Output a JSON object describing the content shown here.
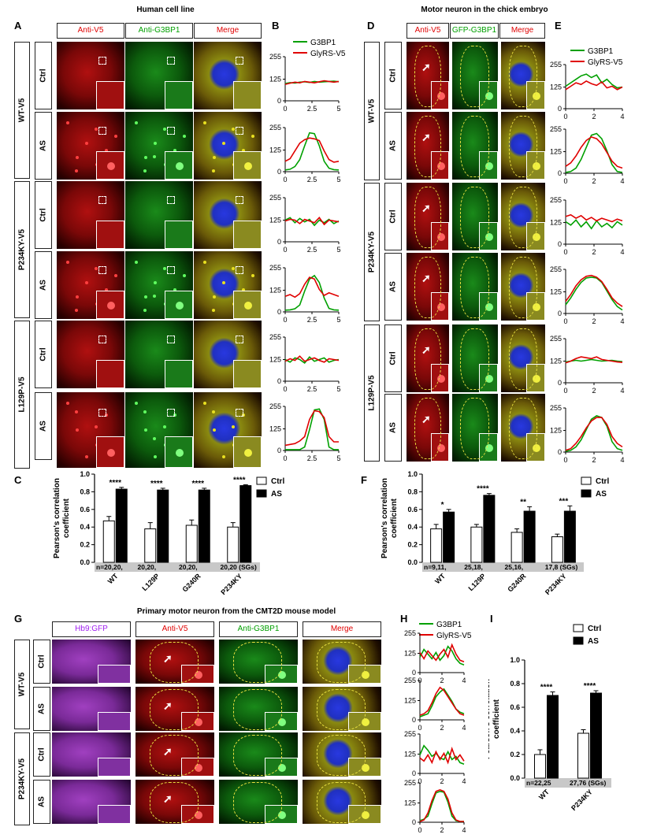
{
  "panels": {
    "A": "A",
    "B": "B",
    "C": "C",
    "D": "D",
    "E": "E",
    "F": "F",
    "G": "G",
    "H": "H",
    "I": "I"
  },
  "titles": {
    "human": "Human cell line",
    "chick": "Motor neuron in the chick embryo",
    "mouse": "Primary motor neuron from the CMT2D mouse model"
  },
  "headers_A": [
    "Anti-V5",
    "Anti-G3BP1",
    "Merge"
  ],
  "headers_D": [
    "Anti-V5",
    "GFP-G3BP1",
    "Merge"
  ],
  "headers_G": [
    "Hb9:GFP",
    "Anti-V5",
    "Anti-G3BP1",
    "Merge"
  ],
  "groups_A": [
    "WT-V5",
    "P234KY-V5",
    "L129P-V5"
  ],
  "groups_G": [
    "WT-V5",
    "P234KY-V5"
  ],
  "conds": [
    "Ctrl",
    "AS"
  ],
  "legend_lines": {
    "g3bp1": "G3BP1",
    "glyrs": "GlyRS-V5"
  },
  "colors": {
    "red": "#e00000",
    "green": "#00a000",
    "purple": "#a020f0",
    "nucleus": "#2030ff"
  },
  "bar_legend": {
    "ctrl": "Ctrl",
    "as": "AS"
  },
  "bar_ylabel": [
    "Pearson's correlation",
    "coefficient"
  ],
  "chart_data": [
    {
      "id": "C",
      "type": "bar",
      "categories": [
        "WT",
        "L129P",
        "G240R",
        "P234KY"
      ],
      "series": [
        {
          "name": "Ctrl",
          "values": [
            0.47,
            0.38,
            0.42,
            0.4
          ],
          "errors": [
            0.05,
            0.07,
            0.06,
            0.05
          ]
        },
        {
          "name": "AS",
          "values": [
            0.83,
            0.82,
            0.82,
            0.87
          ],
          "errors": [
            0.02,
            0.02,
            0.02,
            0.01
          ]
        }
      ],
      "significance": [
        "****",
        "****",
        "****",
        "****"
      ],
      "n_labels": [
        "n=20,20,",
        "20,20,",
        "20,20,",
        "20,20 (SGs)"
      ],
      "ylabel": "Pearson's correlation coefficient",
      "ylim": [
        0,
        1.0
      ],
      "yticks": [
        "0.0",
        "0.2",
        "0.4",
        "0.6",
        "0.8",
        "1.0"
      ]
    },
    {
      "id": "F",
      "type": "bar",
      "categories": [
        "WT",
        "L129P",
        "G240R",
        "P234KY"
      ],
      "series": [
        {
          "name": "Ctrl",
          "values": [
            0.38,
            0.4,
            0.34,
            0.29
          ],
          "errors": [
            0.05,
            0.03,
            0.04,
            0.03
          ]
        },
        {
          "name": "AS",
          "values": [
            0.57,
            0.76,
            0.58,
            0.58
          ],
          "errors": [
            0.03,
            0.02,
            0.05,
            0.06
          ]
        }
      ],
      "significance": [
        "*",
        "****",
        "**",
        "***"
      ],
      "n_labels": [
        "n=9,11,",
        "25,18,",
        "25,16,",
        "17,8 (SGs)"
      ],
      "ylabel": "Pearson's correlation coefficient",
      "ylim": [
        0,
        1.0
      ],
      "yticks": [
        "0.0",
        "0.2",
        "0.4",
        "0.6",
        "0.8",
        "1.0"
      ]
    },
    {
      "id": "I",
      "type": "bar",
      "categories": [
        "WT",
        "P234KY"
      ],
      "series": [
        {
          "name": "Ctrl",
          "values": [
            0.2,
            0.38
          ],
          "errors": [
            0.04,
            0.03
          ]
        },
        {
          "name": "AS",
          "values": [
            0.7,
            0.72
          ],
          "errors": [
            0.03,
            0.02
          ]
        }
      ],
      "significance": [
        "****",
        "****"
      ],
      "n_labels": [
        "n=22,25",
        "27,76 (SGs)"
      ],
      "ylabel": "Pearson's correlation coefficient",
      "ylim": [
        0,
        1.0
      ],
      "yticks": [
        "0.0",
        "0.2",
        "0.4",
        "0.6",
        "0.8",
        "1.0"
      ]
    },
    {
      "id": "B",
      "type": "line",
      "yticks": [
        "0",
        "125",
        "255"
      ],
      "xticks_5": [
        "0",
        "2.5",
        "5"
      ],
      "plots": [
        {
          "green": [
            100,
            105,
            103,
            108,
            110,
            106,
            112,
            108,
            110,
            112,
            114,
            110
          ],
          "red": [
            95,
            102,
            108,
            104,
            112,
            108,
            104,
            110,
            116,
            112,
            108,
            112
          ]
        },
        {
          "green": [
            10,
            14,
            30,
            70,
            150,
            225,
            220,
            150,
            60,
            20,
            12,
            10
          ],
          "red": [
            60,
            75,
            120,
            165,
            185,
            195,
            190,
            180,
            120,
            70,
            55,
            60
          ]
        },
        {
          "green": [
            125,
            140,
            110,
            135,
            115,
            130,
            95,
            125,
            110,
            130,
            105,
            120
          ],
          "red": [
            120,
            130,
            125,
            105,
            130,
            120,
            110,
            140,
            100,
            125,
            120,
            115
          ]
        },
        {
          "green": [
            10,
            12,
            18,
            40,
            120,
            190,
            210,
            170,
            80,
            20,
            12,
            10
          ],
          "red": [
            90,
            100,
            85,
            105,
            160,
            200,
            190,
            130,
            95,
            110,
            100,
            90
          ]
        },
        {
          "green": [
            125,
            110,
            135,
            125,
            105,
            140,
            115,
            125,
            135,
            110,
            120,
            125
          ],
          "red": [
            115,
            130,
            120,
            145,
            115,
            125,
            135,
            120,
            110,
            130,
            125,
            120
          ]
        },
        {
          "green": [
            5,
            5,
            5,
            5,
            20,
            120,
            235,
            240,
            180,
            20,
            5,
            5
          ],
          "red": [
            30,
            35,
            40,
            55,
            80,
            180,
            230,
            225,
            190,
            80,
            50,
            50
          ]
        }
      ]
    },
    {
      "id": "E",
      "type": "line",
      "yticks": [
        "0",
        "125",
        "255"
      ],
      "xticks_4": [
        "0",
        "2",
        "4"
      ],
      "plots": [
        {
          "green": [
            130,
            150,
            170,
            190,
            200,
            180,
            195,
            150,
            170,
            140,
            120,
            125
          ],
          "red": [
            110,
            130,
            150,
            140,
            160,
            145,
            135,
            155,
            120,
            130,
            110,
            125
          ]
        },
        {
          "green": [
            5,
            10,
            30,
            80,
            150,
            220,
            230,
            200,
            130,
            50,
            10,
            5
          ],
          "red": [
            40,
            60,
            100,
            150,
            190,
            210,
            200,
            170,
            120,
            70,
            40,
            30
          ]
        },
        {
          "green": [
            130,
            110,
            140,
            100,
            130,
            90,
            135,
            100,
            120,
            95,
            130,
            110
          ],
          "red": [
            160,
            170,
            150,
            165,
            140,
            155,
            135,
            150,
            140,
            130,
            145,
            135
          ]
        },
        {
          "green": [
            50,
            90,
            140,
            180,
            205,
            210,
            205,
            180,
            130,
            80,
            40,
            20
          ],
          "red": [
            70,
            110,
            160,
            195,
            215,
            220,
            210,
            185,
            140,
            90,
            60,
            40
          ]
        },
        {
          "green": [
            120,
            125,
            130,
            125,
            130,
            135,
            130,
            125,
            128,
            130,
            125,
            122
          ],
          "red": [
            115,
            125,
            140,
            150,
            145,
            140,
            150,
            135,
            130,
            125,
            120,
            118
          ]
        },
        {
          "green": [
            5,
            10,
            30,
            70,
            130,
            190,
            210,
            200,
            150,
            60,
            20,
            10
          ],
          "red": [
            10,
            20,
            50,
            90,
            140,
            180,
            200,
            200,
            160,
            90,
            50,
            30
          ]
        }
      ]
    },
    {
      "id": "H",
      "type": "line",
      "yticks": [
        "0",
        "125",
        "255"
      ],
      "xticks_4": [
        "0",
        "2",
        "4"
      ],
      "plots": [
        {
          "green": [
            100,
            150,
            120,
            90,
            130,
            80,
            110,
            170,
            140,
            90,
            60,
            50
          ],
          "red": [
            130,
            90,
            140,
            110,
            80,
            120,
            150,
            100,
            180,
            120,
            80,
            70
          ]
        },
        {
          "green": [
            20,
            30,
            40,
            90,
            150,
            180,
            200,
            160,
            120,
            70,
            50,
            40
          ],
          "red": [
            30,
            40,
            60,
            110,
            170,
            210,
            190,
            150,
            110,
            70,
            40,
            30
          ]
        },
        {
          "green": [
            120,
            180,
            150,
            110,
            130,
            100,
            90,
            140,
            90,
            110,
            70,
            60
          ],
          "red": [
            100,
            80,
            120,
            70,
            140,
            90,
            130,
            70,
            160,
            90,
            120,
            80
          ]
        },
        {
          "green": [
            10,
            20,
            40,
            120,
            190,
            200,
            195,
            130,
            40,
            10,
            5,
            5
          ],
          "red": [
            5,
            15,
            60,
            140,
            200,
            210,
            200,
            150,
            60,
            15,
            5,
            5
          ]
        }
      ]
    }
  ]
}
